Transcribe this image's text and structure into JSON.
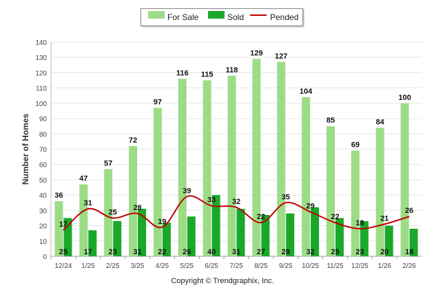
{
  "chart_data": {
    "type": "bar",
    "ylabel": "Number of Homes",
    "ylim": [
      0,
      140
    ],
    "yticks": [
      0,
      10,
      20,
      30,
      40,
      50,
      60,
      70,
      80,
      90,
      100,
      110,
      120,
      130,
      140
    ],
    "grid": true,
    "legend_position": "top-center",
    "categories": [
      "12/24",
      "1/25",
      "2/25",
      "3/25",
      "4/25",
      "5/25",
      "6/25",
      "7/25",
      "8/25",
      "9/25",
      "10/25",
      "11/25",
      "12/25",
      "1/26",
      "2/26"
    ],
    "series": [
      {
        "name": "For Sale",
        "kind": "bar",
        "color": "#9ddc86",
        "values": [
          36,
          47,
          57,
          72,
          97,
          116,
          115,
          118,
          129,
          127,
          104,
          85,
          69,
          84,
          100
        ]
      },
      {
        "name": "Sold",
        "kind": "bar",
        "color": "#1aa82a",
        "values": [
          25,
          17,
          23,
          31,
          22,
          26,
          40,
          31,
          27,
          28,
          32,
          25,
          23,
          20,
          18
        ]
      },
      {
        "name": "Pended",
        "kind": "line",
        "color": "#c00000",
        "values": [
          17,
          31,
          25,
          28,
          19,
          39,
          33,
          32,
          22,
          35,
          29,
          22,
          18,
          21,
          26
        ]
      }
    ]
  },
  "footer": {
    "copyright": "Copyright © Trendgraphix, Inc."
  }
}
